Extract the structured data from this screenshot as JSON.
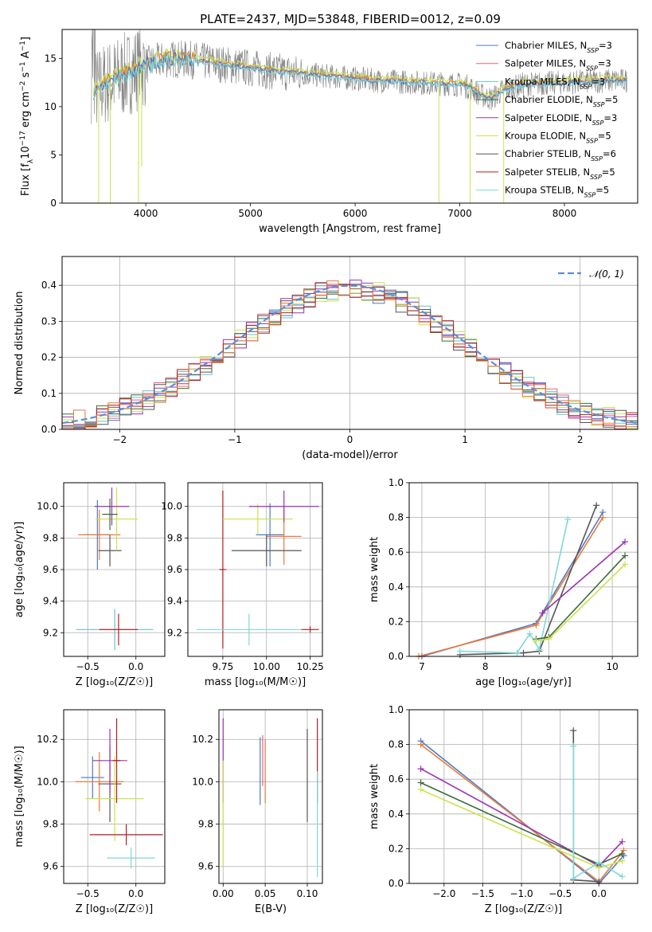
{
  "figure_title": "PLATE=2437, MJD=53848, FIBERID=0012, z=0.09",
  "colors": {
    "chabrier_miles": "#4e79c6",
    "salpeter_miles": "#e8607a",
    "kroupa_miles": "#6fc0c7",
    "chabrier_elodie": "#3b6b3b",
    "salpeter_elodie": "#9b30b5",
    "kroupa_elodie": "#c9e34a",
    "chabrier_stelib": "#555555",
    "salpeter_stelib": "#b71c1c",
    "kroupa_stelib": "#7fd8d8",
    "spectrum": "#808080",
    "model_orange": "#e87a3a",
    "gaussian": "#5b8dd9",
    "grid": "#b0b0b0"
  },
  "legend_series": [
    {
      "name": "Chabrier MILES",
      "nssp": "=3"
    },
    {
      "name": "Salpeter MILES",
      "nssp": "=3"
    },
    {
      "name": "Kroupa MILES",
      "nssp": "=3"
    },
    {
      "name": "Chabrier ELODIE",
      "nssp": "=5"
    },
    {
      "name": "Salpeter ELODIE",
      "nssp": "=3"
    },
    {
      "name": "Kroupa ELODIE",
      "nssp": "=5"
    },
    {
      "name": "Chabrier STELIB",
      "nssp": "=6"
    },
    {
      "name": "Salpeter STELIB",
      "nssp": "=5"
    },
    {
      "name": "Kroupa STELIB",
      "nssp": "=5"
    }
  ],
  "chart_data": [
    {
      "id": "spectrum",
      "type": "line",
      "xlabel": "wavelength [Angstrom, rest frame]",
      "ylabel_parts": [
        "Flux [f",
        "λ",
        "10",
        "−17",
        " erg cm",
        "−2",
        " s",
        "−1",
        " A",
        "−1",
        "]"
      ],
      "xlim": [
        3200,
        8700
      ],
      "ylim": [
        0,
        18
      ],
      "xticks": [
        4000,
        5000,
        6000,
        7000,
        8000
      ],
      "yticks": [
        0,
        5,
        10,
        15
      ],
      "model_curve": {
        "x": [
          3500,
          3600,
          3700,
          3800,
          3900,
          4000,
          4200,
          4400,
          4600,
          4800,
          5000,
          5200,
          5400,
          5600,
          5800,
          6000,
          6200,
          6400,
          6600,
          6800,
          7000,
          7100,
          7200,
          7300,
          7400,
          7600,
          7800,
          8000,
          8200,
          8400,
          8600
        ],
        "y": [
          11.5,
          12.3,
          12.8,
          13.3,
          13.9,
          14.3,
          14.9,
          14.9,
          14.6,
          14.3,
          14.0,
          13.7,
          13.5,
          13.3,
          13.1,
          12.9,
          12.7,
          12.6,
          12.5,
          12.4,
          12.3,
          12.0,
          11.2,
          10.8,
          11.6,
          12.3,
          12.4,
          12.5,
          12.6,
          12.7,
          12.7
        ]
      }
    },
    {
      "id": "residual_hist",
      "type": "bar",
      "xlabel": "(data-model)/error",
      "ylabel": "Normed distribution",
      "xlim": [
        -2.5,
        2.5
      ],
      "ylim": [
        0,
        0.48
      ],
      "xticks": [
        -2,
        -1,
        0,
        1,
        2
      ],
      "yticks": [
        0.0,
        0.1,
        0.2,
        0.3,
        0.4
      ],
      "legend": "𝒩(0, 1)",
      "grid": true
    },
    {
      "id": "age_vs_Z",
      "type": "scatter",
      "xlabel": "Z [log₁₀(Z/Z☉)]",
      "ylabel": "age  [log₁₀(age/yr)]",
      "xlim": [
        -0.75,
        0.3
      ],
      "ylim": [
        9.05,
        10.15
      ],
      "xticks": [
        -0.5,
        0.0
      ],
      "yticks": [
        9.2,
        9.4,
        9.6,
        9.8,
        10.0
      ],
      "points": [
        {
          "x": -0.4,
          "y": 9.82,
          "xerr": 0.14,
          "yerr": 0.22,
          "color": "chabrier_miles"
        },
        {
          "x": -0.38,
          "y": 9.82,
          "xerr": 0.22,
          "yerr": 0.16,
          "color": "model_orange"
        },
        {
          "x": -0.27,
          "y": 9.72,
          "xerr": 0.12,
          "yerr": 0.1,
          "color": "chabrier_stelib"
        },
        {
          "x": -0.22,
          "y": 9.22,
          "xerr": 0.4,
          "yerr": 0.13,
          "color": "kroupa_miles"
        },
        {
          "x": -0.2,
          "y": 9.92,
          "xerr": 0.22,
          "yerr": 0.2,
          "color": "kroupa_elodie"
        },
        {
          "x": -0.25,
          "y": 10.0,
          "xerr": 0.18,
          "yerr": 0.12,
          "color": "salpeter_elodie"
        },
        {
          "x": -0.27,
          "y": 9.95,
          "xerr": 0.08,
          "yerr": 0.1,
          "color": "chabrier_elodie"
        },
        {
          "x": -0.18,
          "y": 9.22,
          "xerr": 0.2,
          "yerr": 0.1,
          "color": "salpeter_stelib"
        }
      ]
    },
    {
      "id": "age_vs_mass",
      "type": "scatter",
      "xlabel": "mass [log₁₀(M/M☉)]",
      "ylabel": "",
      "xlim": [
        9.55,
        10.32
      ],
      "ylim": [
        9.05,
        10.15
      ],
      "xticks": [
        9.75,
        10.0,
        10.25
      ],
      "xticklabels": [
        "9.75",
        "10.00",
        "10.25"
      ],
      "yticks": [
        9.2,
        9.4,
        9.6,
        9.8,
        10.0
      ],
      "points": [
        {
          "x": 10.02,
          "y": 9.82,
          "xerr": 0.08,
          "yerr": 0.2,
          "color": "chabrier_miles"
        },
        {
          "x": 10.1,
          "y": 9.81,
          "xerr": 0.1,
          "yerr": 0.18,
          "color": "model_orange"
        },
        {
          "x": 10.0,
          "y": 9.72,
          "xerr": 0.2,
          "yerr": 0.1,
          "color": "chabrier_stelib"
        },
        {
          "x": 9.75,
          "y": 9.6,
          "xerr": 0.02,
          "yerr": 0.5,
          "color": "salpeter_stelib"
        },
        {
          "x": 9.9,
          "y": 9.22,
          "xerr": 0.3,
          "yerr": 0.1,
          "color": "kroupa_stelib"
        },
        {
          "x": 9.95,
          "y": 9.92,
          "xerr": 0.2,
          "yerr": 0.1,
          "color": "kroupa_elodie"
        },
        {
          "x": 10.1,
          "y": 10.0,
          "xerr": 0.2,
          "yerr": 0.1,
          "color": "salpeter_elodie"
        },
        {
          "x": 10.25,
          "y": 9.22,
          "xerr": 0.05,
          "yerr": 0.02,
          "color": "salpeter_stelib"
        }
      ]
    },
    {
      "id": "weight_vs_age",
      "type": "line",
      "xlabel": "age  [log₁₀(age/yr)]",
      "ylabel": "mass weight",
      "xlim": [
        6.8,
        10.4
      ],
      "ylim": [
        0,
        1.0
      ],
      "xticks": [
        7,
        8,
        9,
        10
      ],
      "yticks": [
        0.0,
        0.2,
        0.4,
        0.6,
        0.8,
        1.0
      ],
      "series": [
        {
          "color": "chabrier_miles",
          "x": [
            7.0,
            8.8,
            9.85
          ],
          "y": [
            0.0,
            0.19,
            0.83
          ]
        },
        {
          "color": "model_orange",
          "x": [
            6.95,
            8.8,
            9.85
          ],
          "y": [
            0.0,
            0.18,
            0.8
          ]
        },
        {
          "color": "chabrier_stelib",
          "x": [
            7.6,
            8.6,
            8.85,
            9.75
          ],
          "y": [
            0.01,
            0.02,
            0.03,
            0.87
          ]
        },
        {
          "color": "kroupa_stelib",
          "x": [
            7.6,
            8.5,
            8.7,
            8.85,
            9.3
          ],
          "y": [
            0.03,
            0.02,
            0.13,
            0.04,
            0.79
          ]
        },
        {
          "color": "salpeter_elodie",
          "x": [
            8.9,
            10.2
          ],
          "y": [
            0.25,
            0.66
          ]
        },
        {
          "color": "chabrier_elodie",
          "x": [
            8.8,
            9.0,
            10.2
          ],
          "y": [
            0.1,
            0.11,
            0.58
          ]
        },
        {
          "color": "kroupa_elodie",
          "x": [
            8.8,
            9.0,
            10.2
          ],
          "y": [
            0.09,
            0.1,
            0.53
          ]
        }
      ]
    },
    {
      "id": "mass_vs_Z",
      "type": "scatter",
      "xlabel": "Z [log₁₀(Z/Z☉)]",
      "ylabel": "mass [log₁₀(M/M☉)]",
      "xlim": [
        -0.75,
        0.3
      ],
      "ylim": [
        9.52,
        10.34
      ],
      "xticks": [
        -0.5,
        0.0
      ],
      "yticks": [
        9.6,
        9.8,
        10.0,
        10.2
      ],
      "points": [
        {
          "x": -0.45,
          "y": 10.02,
          "xerr": 0.12,
          "yerr": 0.1,
          "color": "chabrier_miles"
        },
        {
          "x": -0.38,
          "y": 10.0,
          "xerr": 0.25,
          "yerr": 0.14,
          "color": "model_orange"
        },
        {
          "x": -0.27,
          "y": 9.99,
          "xerr": 0.12,
          "yerr": 0.18,
          "color": "chabrier_stelib"
        },
        {
          "x": -0.22,
          "y": 9.92,
          "xerr": 0.3,
          "yerr": 0.2,
          "color": "kroupa_elodie"
        },
        {
          "x": -0.27,
          "y": 10.1,
          "xerr": 0.18,
          "yerr": 0.15,
          "color": "salpeter_elodie"
        },
        {
          "x": -0.1,
          "y": 9.75,
          "xerr": 0.38,
          "yerr": 0.05,
          "color": "salpeter_stelib"
        },
        {
          "x": -0.05,
          "y": 9.64,
          "xerr": 0.25,
          "yerr": 0.05,
          "color": "kroupa_stelib"
        },
        {
          "x": -0.2,
          "y": 10.1,
          "xerr": 0.04,
          "yerr": 0.2,
          "color": "salpeter_stelib"
        }
      ]
    },
    {
      "id": "mass_vs_ebv",
      "type": "scatter",
      "xlabel": "E(B-V)",
      "ylabel": "",
      "xlim": [
        -0.005,
        0.118
      ],
      "ylim": [
        9.52,
        10.34
      ],
      "xticks": [
        0.0,
        0.05,
        0.1
      ],
      "xticklabels": [
        "0.00",
        "0.05",
        "0.10"
      ],
      "yticks": [
        9.6,
        9.8,
        10.0,
        10.2
      ],
      "points": [
        {
          "x": 0.0,
          "y": 10.1,
          "yerr": 0.2,
          "color": "salpeter_elodie"
        },
        {
          "x": 0.0,
          "y": 9.85,
          "yerr": 0.25,
          "color": "kroupa_elodie"
        },
        {
          "x": 0.044,
          "y": 10.05,
          "yerr": 0.16,
          "color": "chabrier_miles"
        },
        {
          "x": 0.047,
          "y": 10.1,
          "yerr": 0.12,
          "color": "salpeter_miles"
        },
        {
          "x": 0.05,
          "y": 10.05,
          "yerr": 0.15,
          "color": "model_orange"
        },
        {
          "x": 0.1,
          "y": 10.03,
          "yerr": 0.22,
          "color": "chabrier_stelib"
        },
        {
          "x": 0.112,
          "y": 10.1,
          "yerr": 0.2,
          "color": "salpeter_stelib"
        },
        {
          "x": 0.112,
          "y": 9.8,
          "yerr": 0.25,
          "color": "kroupa_stelib"
        }
      ]
    },
    {
      "id": "weight_vs_Z",
      "type": "line",
      "xlabel": "Z [log₁₀(Z/Z☉)]",
      "ylabel": "mass weight",
      "xlim": [
        -2.45,
        0.5
      ],
      "ylim": [
        0,
        1.0
      ],
      "xticks": [
        -2.0,
        -1.5,
        -1.0,
        -0.5,
        0.0
      ],
      "yticks": [
        0.0,
        0.2,
        0.4,
        0.6,
        0.8,
        1.0
      ],
      "series": [
        {
          "color": "chabrier_miles",
          "x": [
            -2.3,
            0.0,
            0.32
          ],
          "y": [
            0.82,
            0.0,
            0.16
          ]
        },
        {
          "color": "model_orange",
          "x": [
            -2.3,
            0.0,
            0.32
          ],
          "y": [
            0.8,
            0.01,
            0.19
          ]
        },
        {
          "color": "salpeter_elodie",
          "x": [
            -2.3,
            0.0,
            0.3
          ],
          "y": [
            0.66,
            0.1,
            0.24
          ]
        },
        {
          "color": "chabrier_elodie",
          "x": [
            -2.3,
            0.0,
            0.3
          ],
          "y": [
            0.58,
            0.11,
            0.17
          ]
        },
        {
          "color": "kroupa_elodie",
          "x": [
            -2.3,
            0.0,
            0.3
          ],
          "y": [
            0.54,
            0.09,
            0.13
          ]
        },
        {
          "color": "chabrier_stelib",
          "x": [
            -0.33,
            -0.33,
            0.0
          ],
          "y": [
            0.88,
            0.02,
            0.01
          ]
        },
        {
          "color": "kroupa_stelib",
          "x": [
            -0.33,
            -0.33,
            0.0,
            0.3
          ],
          "y": [
            0.79,
            0.03,
            0.12,
            0.04
          ]
        }
      ]
    }
  ]
}
